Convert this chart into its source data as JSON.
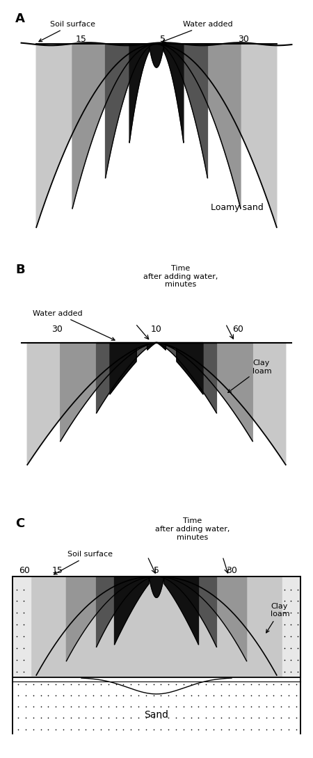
{
  "bg_color": "#ffffff",
  "colors": {
    "outer": "#c8c8c8",
    "mid": "#969696",
    "inner": "#545454",
    "wet": "#111111",
    "white": "#ffffff",
    "dot_bg": "#e0e0e0"
  },
  "panel_A": {
    "label": "A",
    "soil_label": "Loamy sand",
    "time_header": null,
    "soil_surface_label": "Soil surface",
    "water_added_label": "Water added",
    "times": [
      "15",
      "5",
      "30"
    ]
  },
  "panel_B": {
    "label": "B",
    "soil_label": "Clay\nloam",
    "time_header": "Time\nafter adding water,\nminutes",
    "water_added_label": "Water added",
    "times": [
      "30",
      "10",
      "60"
    ]
  },
  "panel_C": {
    "label": "C",
    "soil_label": "Clay\nloam",
    "sand_label": "Sand",
    "time_header": "Time\nafter adding water,\nminutes",
    "soil_surface_label": "Soil surface",
    "times": [
      "60",
      "15",
      "5",
      "30"
    ]
  }
}
